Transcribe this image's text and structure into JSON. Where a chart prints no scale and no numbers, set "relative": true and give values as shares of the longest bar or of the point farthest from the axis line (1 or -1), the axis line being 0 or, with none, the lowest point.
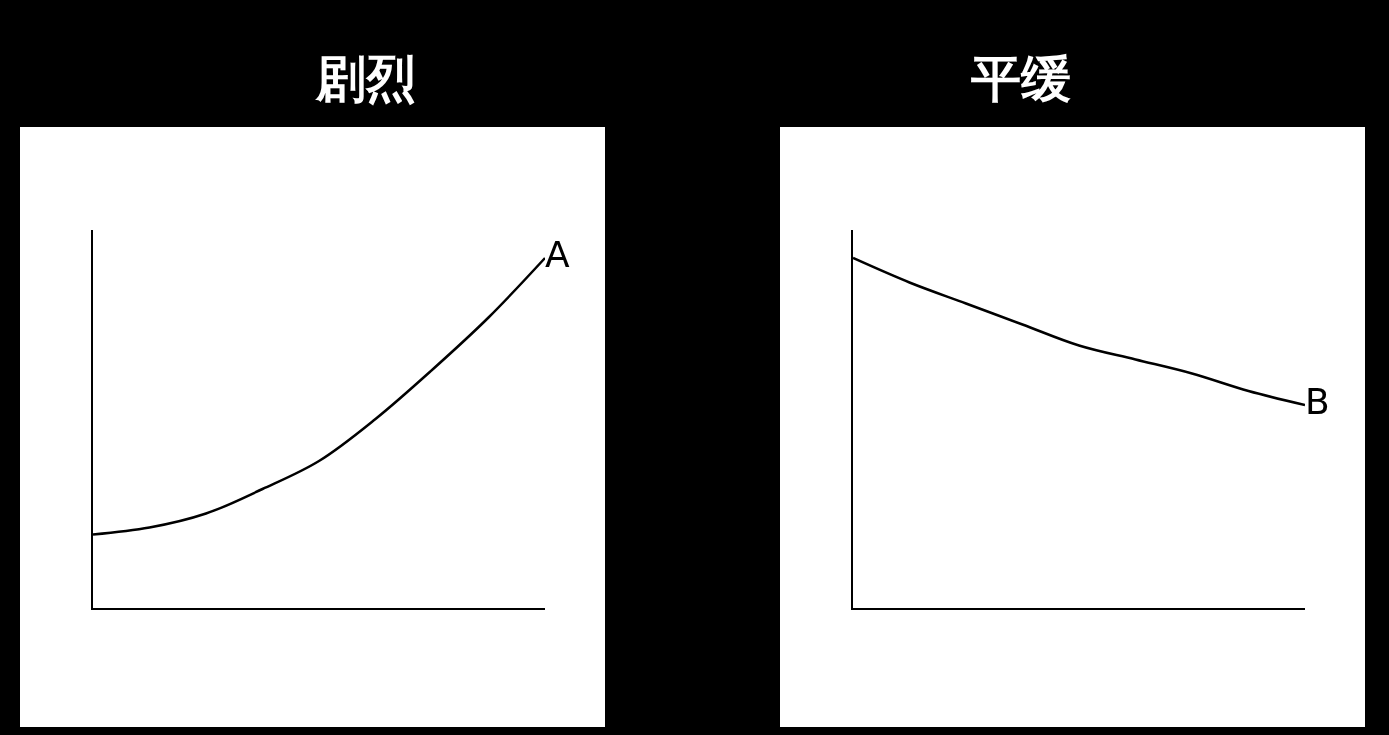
{
  "chart_data": [
    {
      "type": "line",
      "title": "剧烈",
      "categories": [
        null,
        null,
        null,
        null,
        null,
        null,
        null,
        null,
        null
      ],
      "relative": true,
      "series": [
        {
          "name": "A",
          "color": "#000000",
          "values": [
            0.21,
            0.23,
            0.27,
            0.34,
            0.42,
            0.54,
            0.68,
            0.83,
            1
          ]
        }
      ]
    },
    {
      "type": "line",
      "title": "平缓",
      "categories": [
        null,
        null,
        null,
        null,
        null,
        null,
        null,
        null,
        null
      ],
      "relative": true,
      "series": [
        {
          "name": "B",
          "color": "#000000",
          "values": [
            1,
            0.93,
            0.87,
            0.81,
            0.75,
            0.71,
            0.67,
            0.62,
            0.58
          ]
        }
      ]
    }
  ]
}
